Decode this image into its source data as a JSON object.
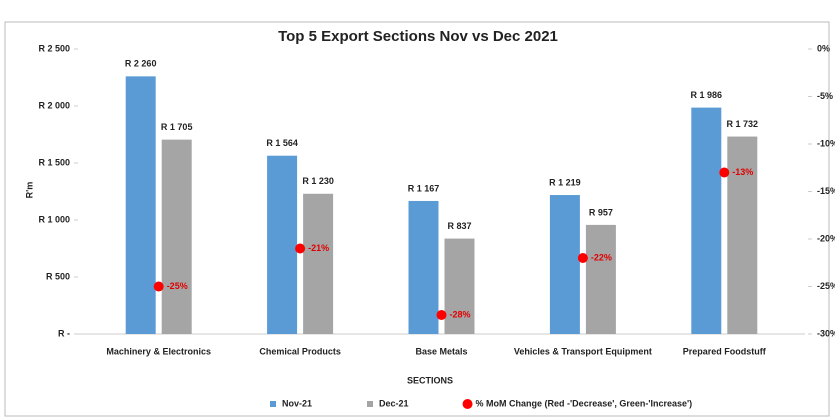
{
  "chart_data": {
    "type": "bar",
    "title": "Top 5 Export Sections Nov vs Dec 2021",
    "ylabel": "R'm",
    "xlabel": "SECTIONS",
    "categories": [
      "Machinery & Electronics",
      "Chemical Products",
      "Base Metals",
      "Vehicles & Transport Equipment",
      "Prepared Foodstuff"
    ],
    "series": [
      {
        "name": "Nov-21",
        "color": "#5b9bd5",
        "values": [
          2260,
          1564,
          1167,
          1219,
          1986
        ],
        "value_labels": [
          "R 2 260",
          "R 1 564",
          "R 1 167",
          "R 1 219",
          "R 1 986"
        ]
      },
      {
        "name": "Dec-21",
        "color": "#a5a5a5",
        "values": [
          1705,
          1230,
          837,
          957,
          1732
        ],
        "value_labels": [
          "R 1 705",
          "R 1 230",
          "R 837",
          "R 957",
          "R 1 732"
        ]
      },
      {
        "name": "% MoM Change (Red -'Decrease', Green-'Increase')",
        "type": "scatter",
        "axis": "y2",
        "color": "#ff0000",
        "values": [
          -25,
          -21,
          -28,
          -22,
          -13
        ],
        "value_labels": [
          "-25%",
          "-21%",
          "-28%",
          "-22%",
          "-13%"
        ]
      }
    ],
    "ylim": [
      0,
      2500
    ],
    "yticks": [
      {
        "value": 0,
        "label": "R -"
      },
      {
        "value": 500,
        "label": "R 500"
      },
      {
        "value": 1000,
        "label": "R 1 000"
      },
      {
        "value": 1500,
        "label": "R 1 500"
      },
      {
        "value": 2000,
        "label": "R 2 000"
      },
      {
        "value": 2500,
        "label": "R 2 500"
      }
    ],
    "y2lim": [
      -30,
      0
    ],
    "y2ticks": [
      {
        "value": 0,
        "label": "0%"
      },
      {
        "value": -5,
        "label": "-5%"
      },
      {
        "value": -10,
        "label": "-10%"
      },
      {
        "value": -15,
        "label": "-15%"
      },
      {
        "value": -20,
        "label": "-20%"
      },
      {
        "value": -25,
        "label": "-25%"
      },
      {
        "value": -30,
        "label": "-30%"
      }
    ],
    "grid": false
  }
}
